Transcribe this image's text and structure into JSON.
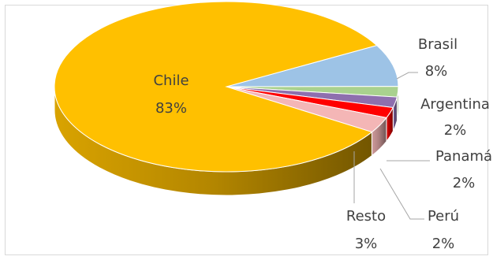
{
  "chart_data": {
    "type": "pie",
    "style": "3d",
    "categories": [
      "Chile",
      "Brasil",
      "Argentina",
      "Panamá",
      "Perú",
      "Resto"
    ],
    "values": [
      83,
      8,
      2,
      2,
      2,
      3
    ],
    "value_labels": [
      "83%",
      "8%",
      "2%",
      "2%",
      "2%",
      "3%"
    ],
    "colors": {
      "Chile": "#FFC000",
      "Brasil": "#9DC3E6",
      "Argentina": "#A9D18E",
      "Panamá": "#8E6FAE",
      "Perú": "#FF0000",
      "Resto": "#F4B6B6"
    },
    "title": "",
    "legend": "none"
  }
}
